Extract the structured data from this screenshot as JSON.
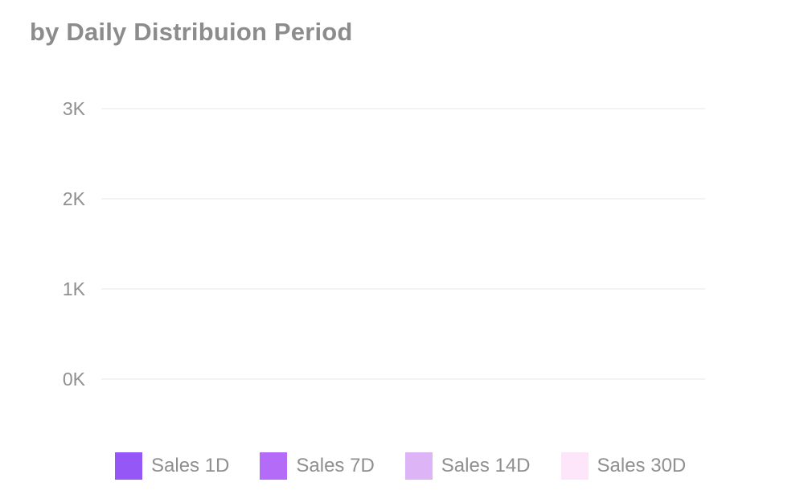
{
  "chart_data": {
    "type": "bar",
    "title": "by Daily Distribuion Period",
    "xlabel": "",
    "ylabel": "",
    "ylim": [
      0,
      3000
    ],
    "y_ticks": [
      {
        "value": 0,
        "label": "0K"
      },
      {
        "value": 1000,
        "label": "1K"
      },
      {
        "value": 2000,
        "label": "2K"
      },
      {
        "value": 3000,
        "label": "3K"
      }
    ],
    "categories": [],
    "grid": true,
    "legend_position": "bottom",
    "series": [
      {
        "name": "Sales 1D",
        "color": "#9657f7",
        "values": []
      },
      {
        "name": "Sales 7D",
        "color": "#b46bf7",
        "values": []
      },
      {
        "name": "Sales 14D",
        "color": "#ddb5f7",
        "values": []
      },
      {
        "name": "Sales 30D",
        "color": "#fde6fa",
        "values": []
      }
    ]
  }
}
